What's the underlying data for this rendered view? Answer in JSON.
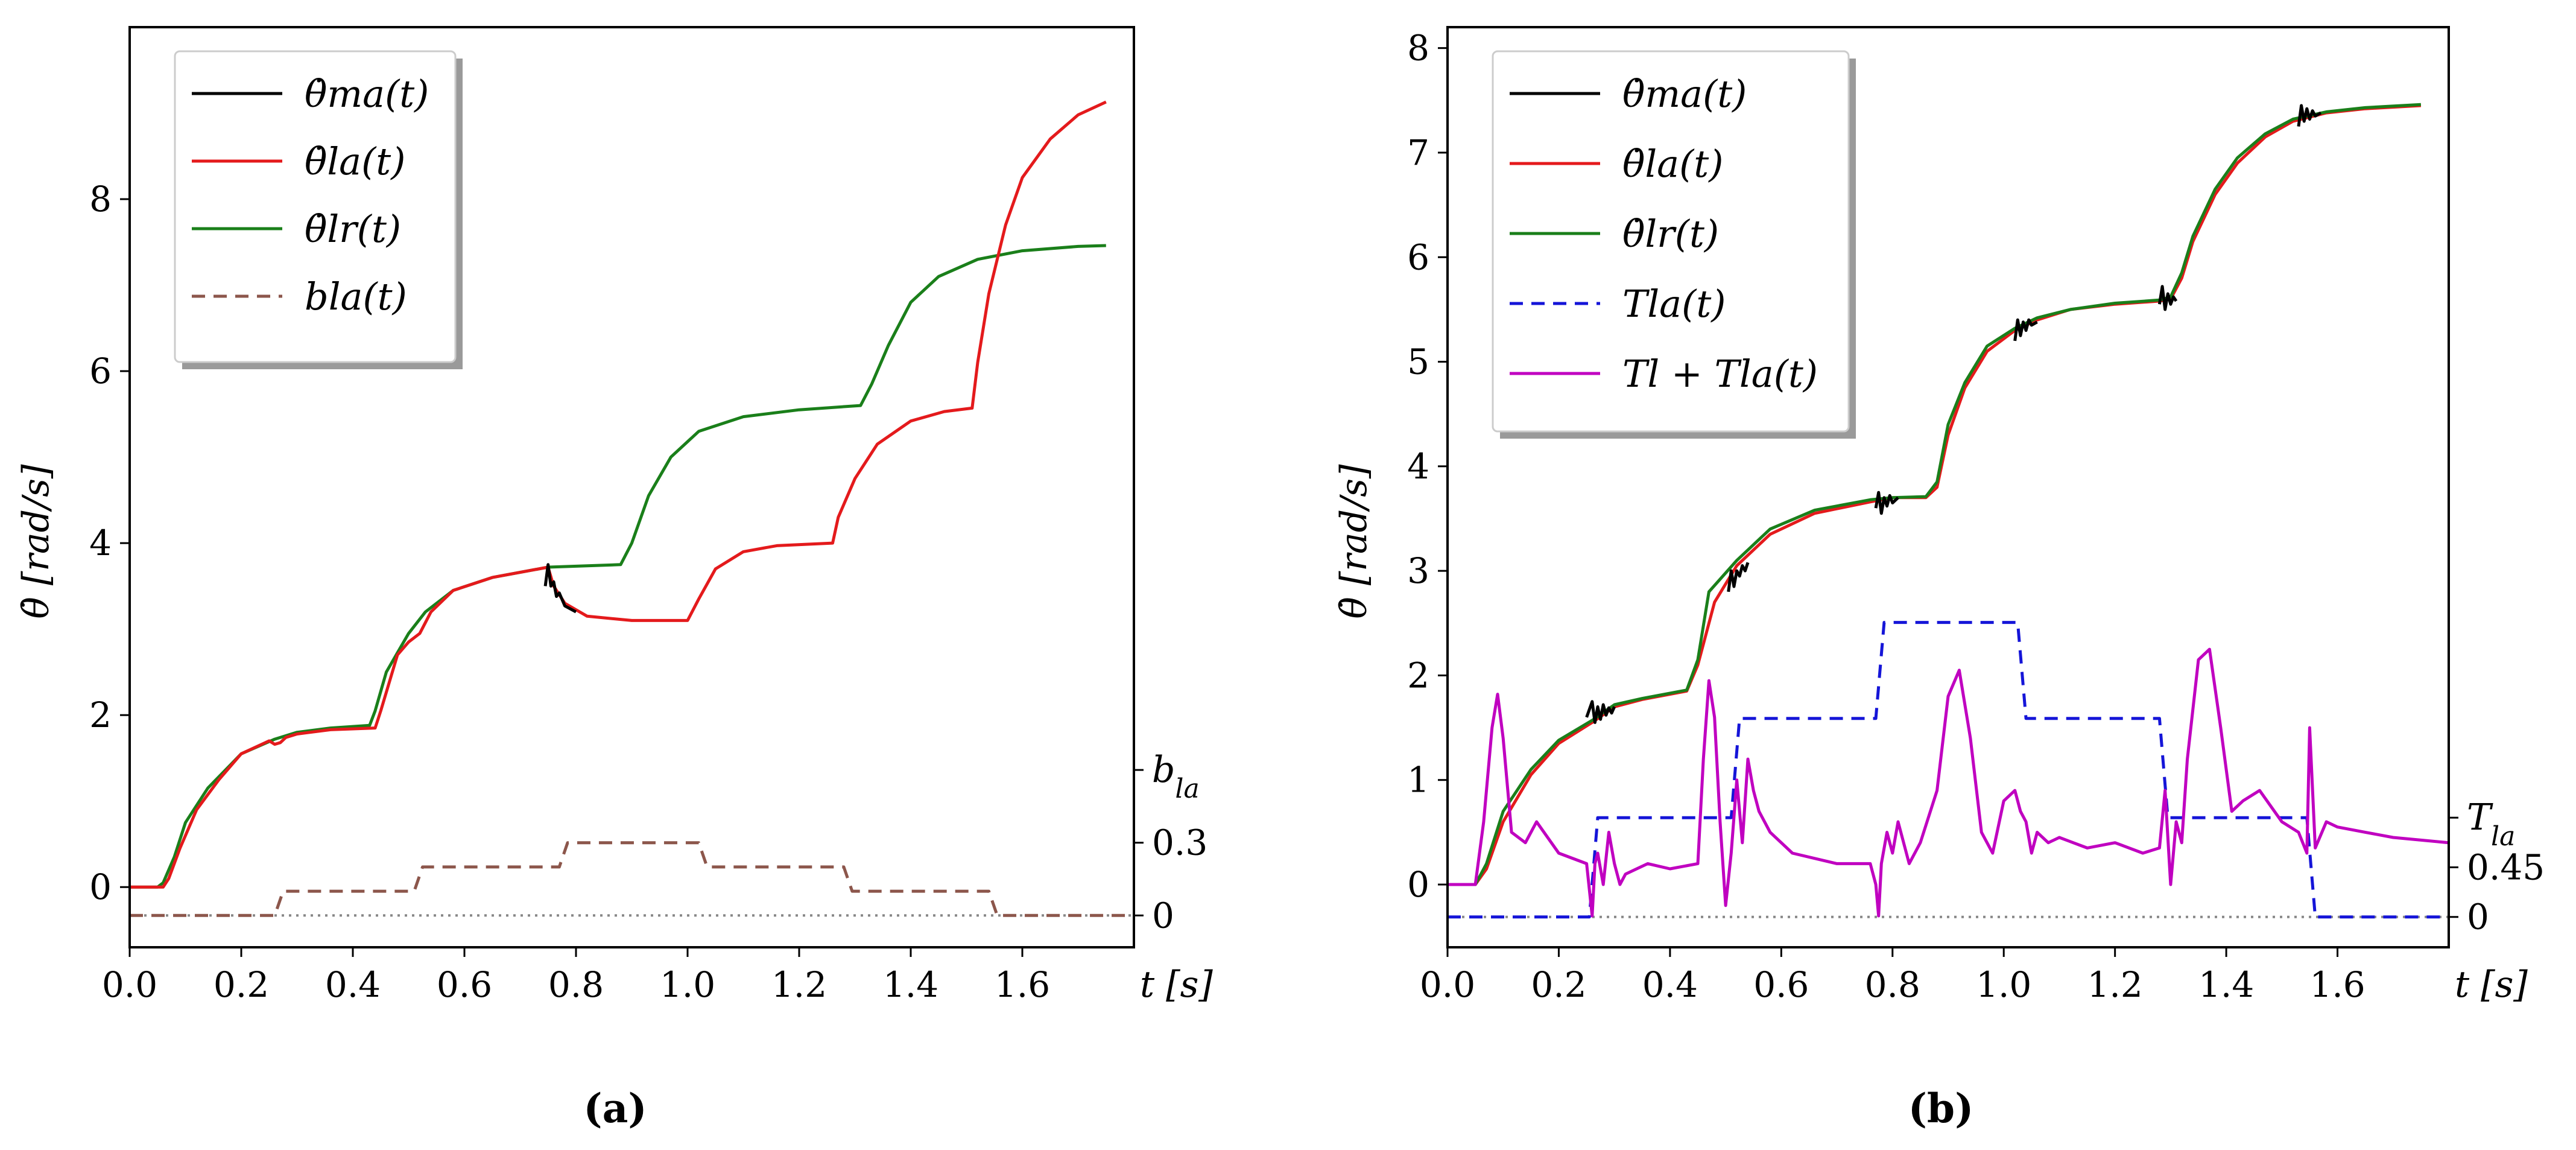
{
  "chart_data": [
    {
      "type": "line",
      "caption": "(a)",
      "xlabel": "t [s]",
      "ylabel": "θ̇ [rad/s]",
      "xlim": [
        0,
        1.8
      ],
      "ylim": [
        -0.7,
        10.0
      ],
      "xticks": [
        "0.0",
        "0.2",
        "0.4",
        "0.6",
        "0.8",
        "1.0",
        "1.2",
        "1.4",
        "1.6"
      ],
      "yticks": [
        "0",
        "2",
        "4",
        "6",
        "8"
      ],
      "right_axis": {
        "label": "b_la",
        "ticks": [
          "0",
          "0.3"
        ],
        "baseline": -0.33,
        "scale": 2.82
      },
      "legend": [
        "θ̇ma(t)",
        "θ̇la(t)",
        "θ̇lr(t)",
        "bla(t)"
      ],
      "colors": {
        "ma": "#000000",
        "la": "#e41a1c",
        "lr": "#1a7f1a",
        "b": "#8c564b",
        "zero": "#888888"
      },
      "series": [
        {
          "name": "θ̇lr(t)",
          "key": "lr",
          "x": [
            0.0,
            0.05,
            0.06,
            0.08,
            0.1,
            0.14,
            0.2,
            0.26,
            0.3,
            0.36,
            0.43,
            0.44,
            0.46,
            0.5,
            0.53,
            0.58,
            0.65,
            0.75,
            0.88,
            0.9,
            0.93,
            0.97,
            1.02,
            1.1,
            1.2,
            1.31,
            1.33,
            1.36,
            1.4,
            1.45,
            1.52,
            1.6,
            1.7,
            1.75
          ],
          "y": [
            0.0,
            0.0,
            0.05,
            0.35,
            0.75,
            1.15,
            1.55,
            1.72,
            1.8,
            1.85,
            1.88,
            2.05,
            2.5,
            2.95,
            3.2,
            3.45,
            3.6,
            3.72,
            3.75,
            4.0,
            4.55,
            5.0,
            5.3,
            5.47,
            5.55,
            5.6,
            5.85,
            6.3,
            6.8,
            7.1,
            7.3,
            7.4,
            7.45,
            7.46
          ]
        },
        {
          "name": "θ̇la(t)",
          "key": "la",
          "x": [
            0.0,
            0.06,
            0.07,
            0.09,
            0.12,
            0.16,
            0.2,
            0.25,
            0.26,
            0.27,
            0.28,
            0.3,
            0.36,
            0.44,
            0.45,
            0.48,
            0.5,
            0.52,
            0.54,
            0.58,
            0.65,
            0.75,
            0.76,
            0.78,
            0.82,
            0.9,
            1.0,
            1.02,
            1.05,
            1.1,
            1.16,
            1.26,
            1.27,
            1.3,
            1.34,
            1.4,
            1.46,
            1.51,
            1.52,
            1.54,
            1.57,
            1.6,
            1.65,
            1.7,
            1.75
          ],
          "y": [
            0.0,
            0.0,
            0.1,
            0.45,
            0.9,
            1.25,
            1.55,
            1.7,
            1.66,
            1.68,
            1.74,
            1.78,
            1.83,
            1.85,
            2.05,
            2.7,
            2.85,
            2.95,
            3.2,
            3.45,
            3.6,
            3.72,
            3.5,
            3.3,
            3.15,
            3.1,
            3.1,
            3.35,
            3.7,
            3.9,
            3.97,
            4.0,
            4.3,
            4.75,
            5.15,
            5.42,
            5.53,
            5.57,
            6.1,
            6.9,
            7.7,
            8.25,
            8.7,
            8.98,
            9.13
          ]
        },
        {
          "name": "θ̇ma(t)",
          "key": "ma",
          "x": [
            0.745,
            0.75,
            0.755,
            0.76,
            0.765,
            0.77,
            0.78,
            0.8
          ],
          "y": [
            3.5,
            3.75,
            3.5,
            3.55,
            3.38,
            3.42,
            3.27,
            3.2
          ]
        },
        {
          "name": "bla(t)",
          "key": "b",
          "x": [
            0.0,
            0.26,
            0.275,
            0.51,
            0.525,
            0.77,
            0.785,
            1.02,
            1.035,
            1.28,
            1.295,
            1.54,
            1.555,
            1.8
          ],
          "y": [
            0.0,
            0.0,
            0.1,
            0.1,
            0.2,
            0.2,
            0.3,
            0.3,
            0.2,
            0.2,
            0.1,
            0.1,
            0.0,
            0.0
          ]
        }
      ]
    },
    {
      "type": "line",
      "caption": "(b)",
      "xlabel": "t [s]",
      "ylabel": "θ̇ [rad/s]",
      "xlim": [
        0,
        1.8
      ],
      "ylim": [
        -0.6,
        8.2
      ],
      "xticks": [
        "0.0",
        "0.2",
        "0.4",
        "0.6",
        "0.8",
        "1.0",
        "1.2",
        "1.4",
        "1.6"
      ],
      "yticks": [
        "0",
        "1",
        "2",
        "3",
        "4",
        "5",
        "6",
        "7",
        "8"
      ],
      "right_axis": {
        "label": "T_la",
        "ticks": [
          "0",
          "0.45"
        ],
        "baseline": -0.31,
        "scale": 1.055
      },
      "legend": [
        "θ̇ma(t)",
        "θ̇la(t)",
        "θ̇lr(t)",
        "Tla(t)",
        "Tl + Tla(t)"
      ],
      "colors": {
        "ma": "#000000",
        "la": "#e41a1c",
        "lr": "#1a7f1a",
        "T": "#1515d8",
        "Tl": "#c000c0",
        "zero": "#888888"
      },
      "series": [
        {
          "name": "θ̇la(t)",
          "key": "la",
          "x": [
            0.0,
            0.05,
            0.07,
            0.1,
            0.15,
            0.2,
            0.26,
            0.3,
            0.35,
            0.43,
            0.45,
            0.48,
            0.52,
            0.58,
            0.66,
            0.76,
            0.8,
            0.86,
            0.88,
            0.9,
            0.93,
            0.97,
            1.02,
            1.06,
            1.12,
            1.2,
            1.28,
            1.3,
            1.32,
            1.34,
            1.38,
            1.42,
            1.47,
            1.52,
            1.58,
            1.65,
            1.75
          ],
          "y": [
            0.0,
            0.0,
            0.15,
            0.6,
            1.05,
            1.35,
            1.55,
            1.7,
            1.77,
            1.85,
            2.1,
            2.7,
            3.05,
            3.35,
            3.55,
            3.66,
            3.7,
            3.7,
            3.8,
            4.3,
            4.75,
            5.1,
            5.3,
            5.4,
            5.5,
            5.55,
            5.58,
            5.6,
            5.8,
            6.15,
            6.6,
            6.9,
            7.15,
            7.3,
            7.38,
            7.42,
            7.45
          ]
        },
        {
          "name": "θ̇lr(t)",
          "key": "lr",
          "x": [
            0.0,
            0.05,
            0.07,
            0.1,
            0.15,
            0.2,
            0.26,
            0.3,
            0.35,
            0.43,
            0.45,
            0.47,
            0.52,
            0.58,
            0.66,
            0.76,
            0.8,
            0.86,
            0.88,
            0.9,
            0.93,
            0.97,
            1.02,
            1.06,
            1.12,
            1.2,
            1.28,
            1.3,
            1.32,
            1.34,
            1.38,
            1.42,
            1.47,
            1.52,
            1.58,
            1.65,
            1.75
          ],
          "y": [
            0.0,
            0.0,
            0.2,
            0.7,
            1.1,
            1.38,
            1.57,
            1.72,
            1.78,
            1.86,
            2.15,
            2.8,
            3.1,
            3.4,
            3.58,
            3.68,
            3.7,
            3.71,
            3.85,
            4.4,
            4.8,
            5.15,
            5.32,
            5.42,
            5.5,
            5.56,
            5.59,
            5.62,
            5.85,
            6.2,
            6.65,
            6.95,
            7.18,
            7.32,
            7.39,
            7.43,
            7.46
          ]
        },
        {
          "name": "θ̇ma(t)",
          "key": "ma",
          "x": [
            0.25,
            0.26,
            0.265,
            0.27,
            0.275,
            0.28,
            0.285,
            0.29,
            0.295,
            0.3
          ],
          "y": [
            1.6,
            1.75,
            1.55,
            1.7,
            1.58,
            1.72,
            1.62,
            1.69,
            1.64,
            1.7
          ]
        },
        {
          "name": "θ̇ma(t)",
          "key": "ma",
          "x": [
            0.505,
            0.51,
            0.515,
            0.52,
            0.525,
            0.53,
            0.535,
            0.54
          ],
          "y": [
            2.8,
            3.0,
            2.85,
            3.0,
            2.95,
            3.05,
            3.0,
            3.08
          ]
        },
        {
          "name": "θ̇ma(t)",
          "key": "ma",
          "x": [
            0.77,
            0.775,
            0.78,
            0.785,
            0.79,
            0.795,
            0.8,
            0.81
          ],
          "y": [
            3.6,
            3.75,
            3.55,
            3.7,
            3.62,
            3.72,
            3.65,
            3.7
          ]
        },
        {
          "name": "θ̇ma(t)",
          "key": "ma",
          "x": [
            1.02,
            1.025,
            1.03,
            1.035,
            1.04,
            1.045,
            1.05,
            1.06
          ],
          "y": [
            5.2,
            5.4,
            5.25,
            5.38,
            5.3,
            5.4,
            5.35,
            5.38
          ]
        },
        {
          "name": "θ̇ma(t)",
          "key": "ma",
          "x": [
            1.28,
            1.285,
            1.29,
            1.295,
            1.3,
            1.305,
            1.31
          ],
          "y": [
            5.55,
            5.72,
            5.5,
            5.65,
            5.55,
            5.62,
            5.58
          ]
        },
        {
          "name": "θ̇ma(t)",
          "key": "ma",
          "x": [
            1.53,
            1.535,
            1.54,
            1.545,
            1.55,
            1.555,
            1.56,
            1.57
          ],
          "y": [
            7.25,
            7.45,
            7.3,
            7.42,
            7.32,
            7.4,
            7.35,
            7.38
          ]
        },
        {
          "name": "Tla(t)",
          "key": "T",
          "x": [
            0.0,
            0.255,
            0.27,
            0.51,
            0.525,
            0.77,
            0.785,
            1.025,
            1.04,
            1.28,
            1.295,
            1.545,
            1.56,
            1.8
          ],
          "y": [
            0.0,
            0.0,
            0.9,
            0.9,
            1.8,
            1.8,
            2.67,
            2.67,
            1.8,
            1.8,
            0.9,
            0.9,
            0.0,
            0.0
          ]
        },
        {
          "name": "Tl + Tla(t)",
          "key": "Tl",
          "x": [
            0.0,
            0.05,
            0.065,
            0.08,
            0.09,
            0.1,
            0.115,
            0.14,
            0.16,
            0.2,
            0.25,
            0.26,
            0.265,
            0.27,
            0.28,
            0.29,
            0.3,
            0.31,
            0.32,
            0.34,
            0.36,
            0.4,
            0.45,
            0.46,
            0.47,
            0.48,
            0.49,
            0.5,
            0.51,
            0.52,
            0.53,
            0.54,
            0.55,
            0.56,
            0.58,
            0.62,
            0.7,
            0.76,
            0.77,
            0.775,
            0.78,
            0.79,
            0.8,
            0.81,
            0.83,
            0.85,
            0.88,
            0.9,
            0.92,
            0.94,
            0.96,
            0.98,
            1.0,
            1.02,
            1.03,
            1.04,
            1.05,
            1.06,
            1.08,
            1.1,
            1.15,
            1.2,
            1.25,
            1.28,
            1.29,
            1.3,
            1.31,
            1.32,
            1.33,
            1.35,
            1.37,
            1.39,
            1.41,
            1.43,
            1.46,
            1.5,
            1.53,
            1.545,
            1.55,
            1.56,
            1.58,
            1.6,
            1.65,
            1.7,
            1.8
          ],
          "y": [
            0.0,
            0.0,
            0.6,
            1.5,
            1.82,
            1.4,
            0.5,
            0.4,
            0.6,
            0.3,
            0.2,
            -0.3,
            0.2,
            0.3,
            0.0,
            0.5,
            0.2,
            0.0,
            0.1,
            0.15,
            0.2,
            0.15,
            0.2,
            1.2,
            1.95,
            1.6,
            0.6,
            -0.2,
            0.3,
            1.0,
            0.4,
            1.2,
            0.9,
            0.7,
            0.5,
            0.3,
            0.2,
            0.2,
            0.0,
            -0.3,
            0.2,
            0.5,
            0.3,
            0.6,
            0.2,
            0.4,
            0.9,
            1.8,
            2.05,
            1.4,
            0.5,
            0.3,
            0.8,
            0.9,
            0.7,
            0.6,
            0.3,
            0.5,
            0.4,
            0.45,
            0.35,
            0.4,
            0.3,
            0.35,
            0.9,
            0.0,
            0.6,
            0.4,
            1.2,
            2.15,
            2.25,
            1.5,
            0.7,
            0.8,
            0.9,
            0.6,
            0.5,
            0.3,
            1.5,
            0.35,
            0.6,
            0.55,
            0.5,
            0.45,
            0.4
          ]
        }
      ]
    }
  ]
}
